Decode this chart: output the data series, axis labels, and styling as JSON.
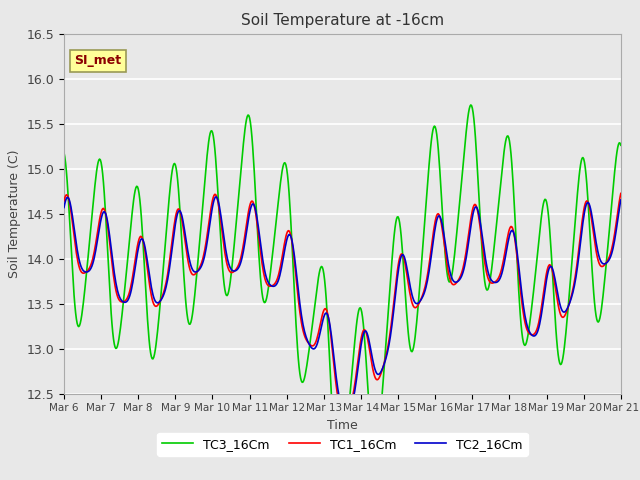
{
  "title": "Soil Temperature at -16cm",
  "xlabel": "Time",
  "ylabel": "Soil Temperature (C)",
  "ylim": [
    12.5,
    16.5
  ],
  "xlim": [
    0,
    360
  ],
  "annotation_text": "SI_met",
  "annotation_color": "#8B0000",
  "annotation_bg": "#FFFF99",
  "bg_color": "#E8E8E8",
  "plot_bg": "#E8E8E8",
  "grid_color": "#FFFFFF",
  "line_colors": [
    "#FF0000",
    "#0000CC",
    "#00CC00"
  ],
  "line_labels": [
    "TC1_16Cm",
    "TC2_16Cm",
    "TC3_16Cm"
  ],
  "tick_labels": [
    "Mar 6",
    "Mar 7",
    "Mar 8",
    "Mar 9",
    "Mar 10",
    "Mar 11",
    "Mar 12",
    "Mar 13",
    "Mar 14",
    "Mar 15",
    "Mar 16",
    "Mar 17",
    "Mar 18",
    "Mar 19",
    "Mar 20",
    "Mar 21"
  ],
  "yticks": [
    12.5,
    13.0,
    13.5,
    14.0,
    14.5,
    15.0,
    15.5,
    16.0,
    16.5
  ],
  "n_points": 721
}
